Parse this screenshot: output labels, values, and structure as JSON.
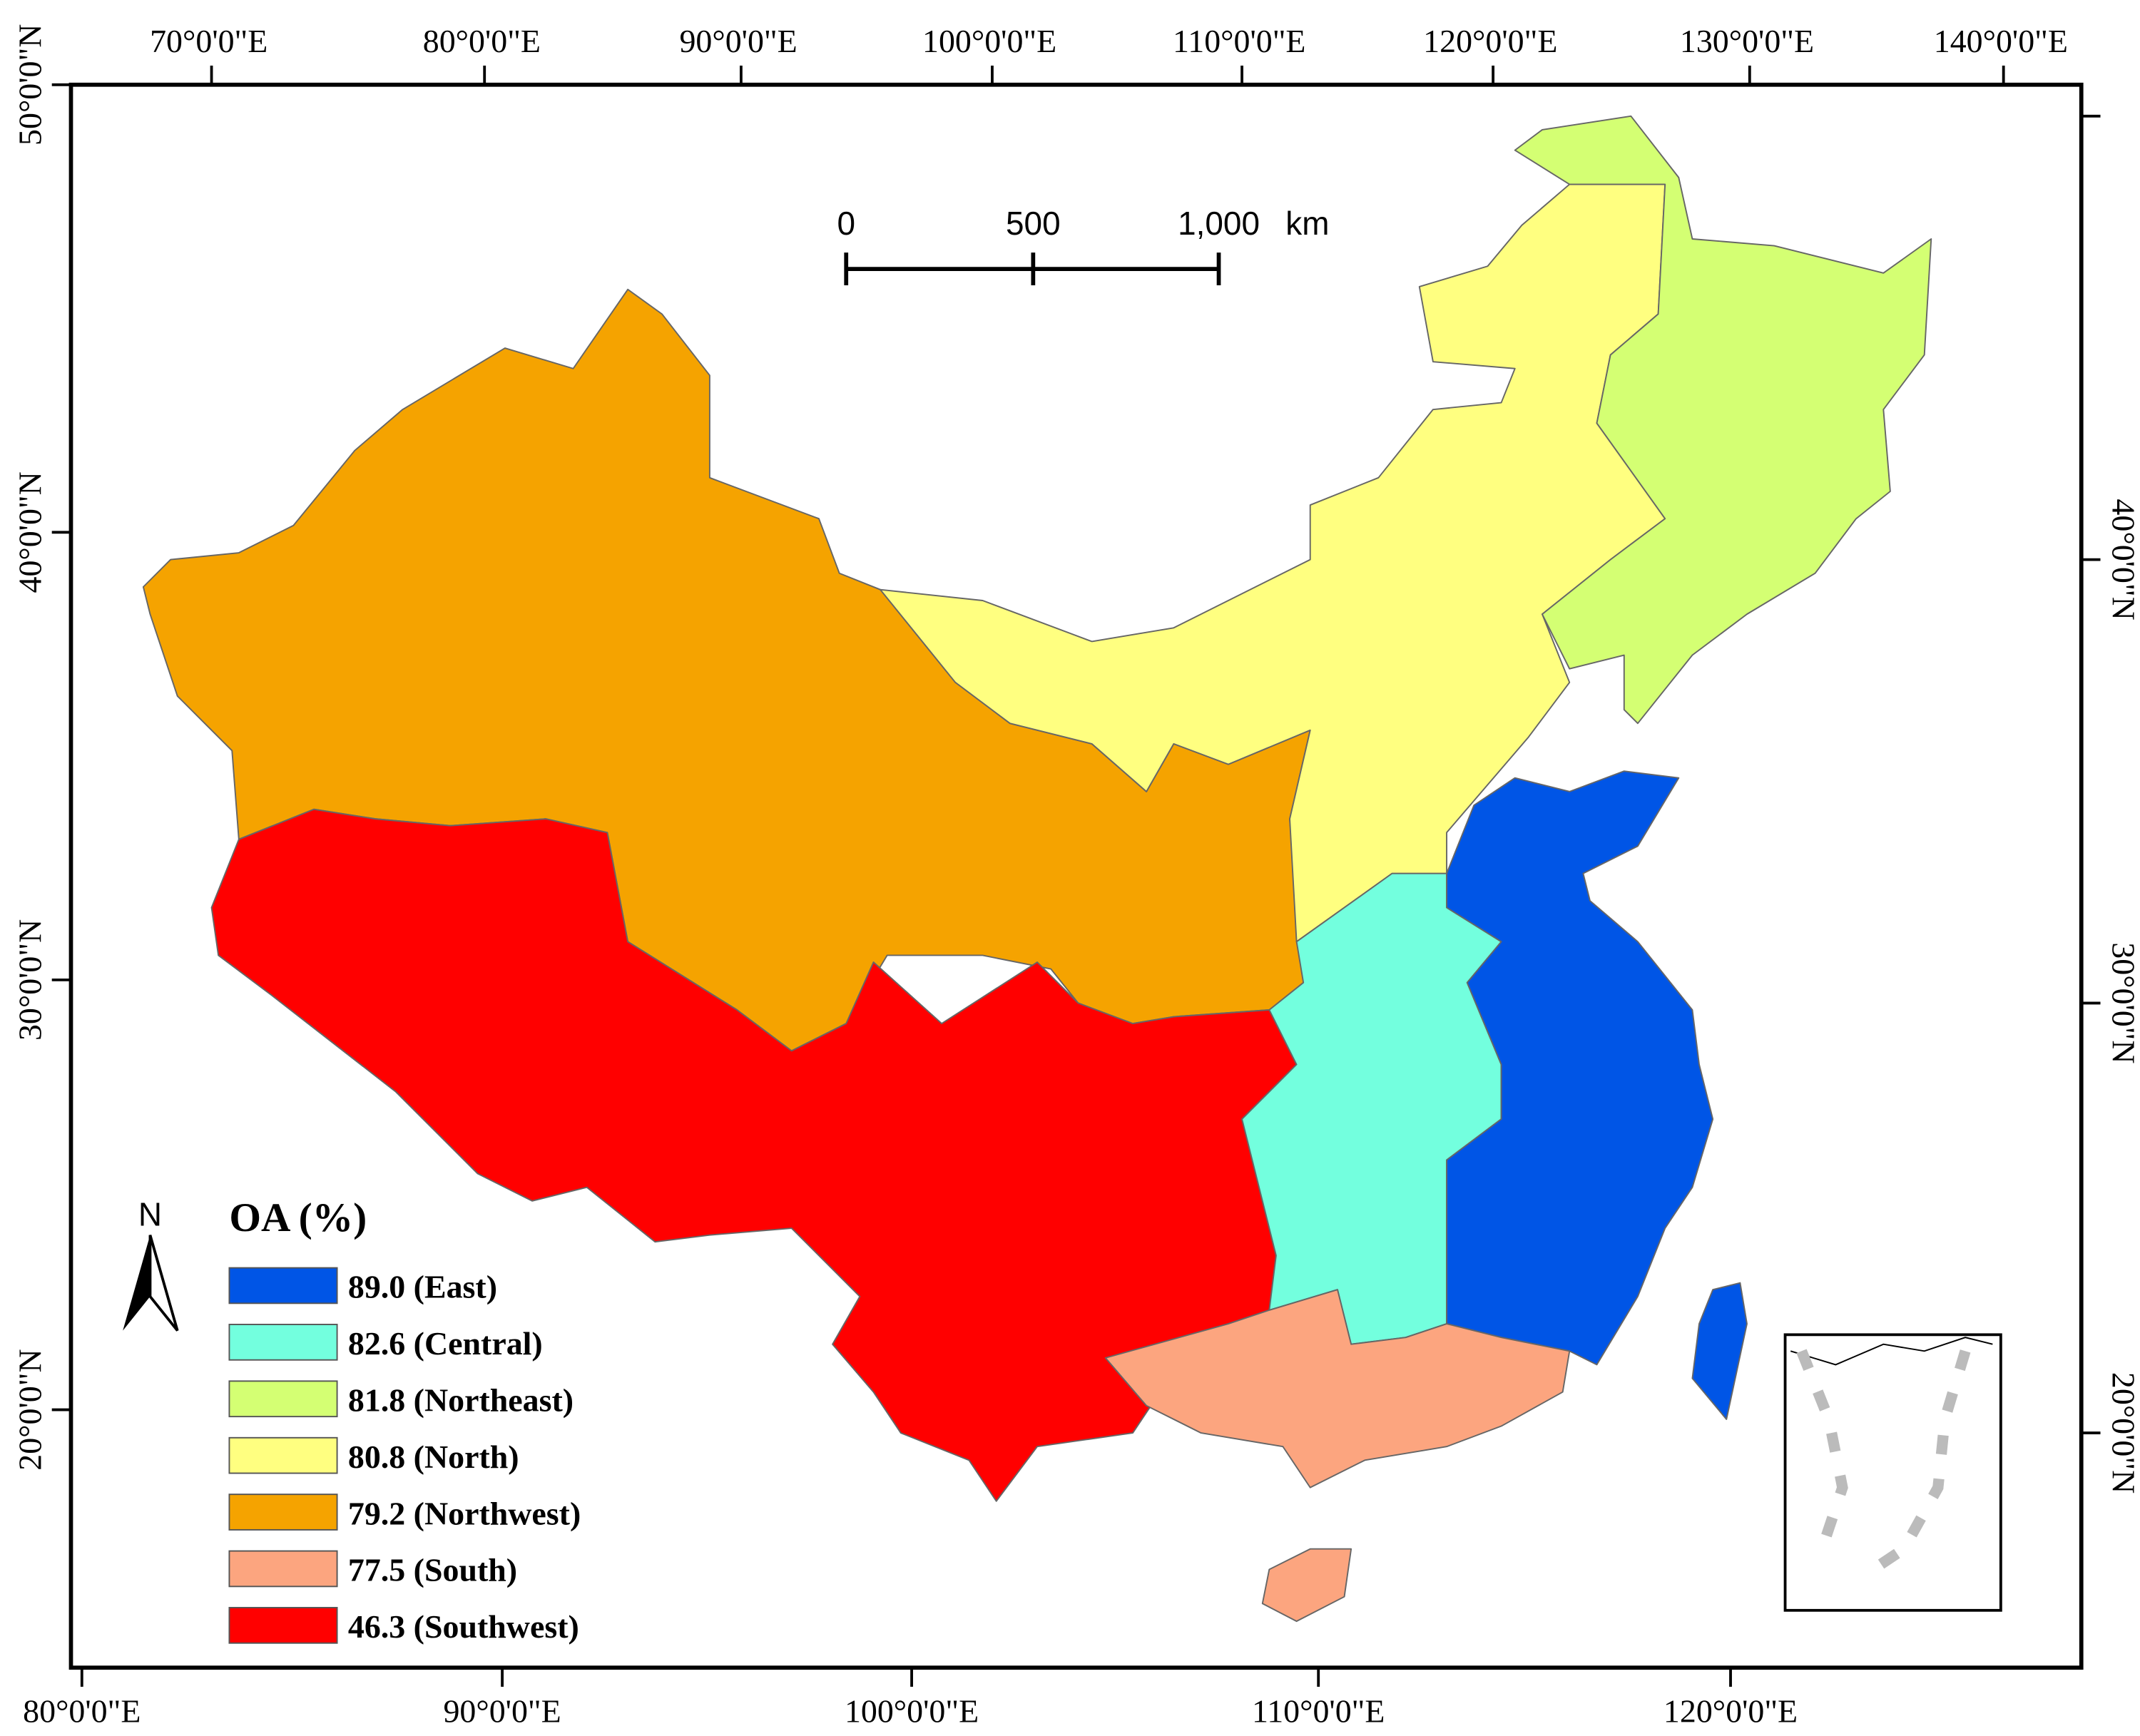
{
  "axes": {
    "top": [
      "70°0'0\"E",
      "80°0'0\"E",
      "90°0'0\"E",
      "100°0'0\"E",
      "110°0'0\"E",
      "120°0'0\"E",
      "130°0'0\"E",
      "140°0'0\"E"
    ],
    "bottom": [
      "80°0'0\"E",
      "90°0'0\"E",
      "100°0'0\"E",
      "110°0'0\"E",
      "120°0'0\"E"
    ],
    "left": [
      "50°0'0\"N",
      "40°0'0\"N",
      "30°0'0\"N",
      "20°0'0\"N"
    ],
    "right": [
      "40°0'0\"N",
      "30°0'0\"N",
      "20°0'0\"N"
    ]
  },
  "scale_bar": {
    "labels": [
      "0",
      "500",
      "1,000"
    ],
    "unit": "km"
  },
  "north_arrow": "N",
  "legend": {
    "title": "OA (%)",
    "items": [
      {
        "label": "89.0 (East)",
        "color": "#0055e6"
      },
      {
        "label": "82.6 (Central)",
        "color": "#73ffde"
      },
      {
        "label": "81.8 (Northeast)",
        "color": "#d4ff73"
      },
      {
        "label": "80.8 (North)",
        "color": "#ffff80"
      },
      {
        "label": "79.2 (Northwest)",
        "color": "#f5a300"
      },
      {
        "label": "77.5 (South)",
        "color": "#fca57f"
      },
      {
        "label": "46.3 (Southwest)",
        "color": "#ff0000"
      }
    ]
  }
}
